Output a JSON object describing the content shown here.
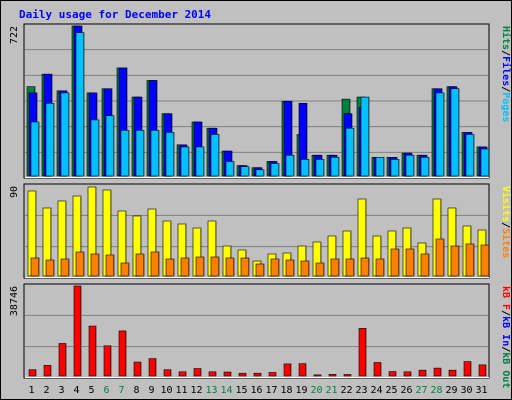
{
  "chart_data": {
    "type": "bar",
    "title": "Daily usage for December 2014",
    "colors": {
      "background": "#c0c0c0",
      "hits": "#008040",
      "files": "#0000ff",
      "pages": "#00c0ff",
      "visits": "#ffff00",
      "sites": "#ff8000",
      "kbytes": "#ff0000",
      "kb_in": "#0000ff",
      "kb_out": "#008040",
      "weekend_day_label": "#008040",
      "weekday_day_label": "#000000"
    },
    "days": [
      "1",
      "2",
      "3",
      "4",
      "5",
      "6",
      "7",
      "8",
      "9",
      "10",
      "11",
      "12",
      "13",
      "14",
      "15",
      "16",
      "17",
      "18",
      "19",
      "20",
      "21",
      "22",
      "23",
      "24",
      "25",
      "26",
      "27",
      "28",
      "29",
      "30",
      "31"
    ],
    "weekend_days": [
      "6",
      "7",
      "13",
      "14",
      "20",
      "21",
      "27",
      "28"
    ],
    "panels": [
      {
        "id": "top",
        "scale_label": "722",
        "ymax": 722,
        "right_labels": [
          {
            "text": "Hits",
            "color": "#008040"
          },
          {
            "text": "/",
            "color": "#000000"
          },
          {
            "text": "Files",
            "color": "#0000ff"
          },
          {
            "text": "/",
            "color": "#000000"
          },
          {
            "text": "Pages",
            "color": "#00c0ff"
          }
        ],
        "series": [
          {
            "name": "Hits",
            "color": "#008040",
            "values": [
              430,
              490,
              410,
              722,
              400,
              420,
              520,
              380,
              460,
              300,
              150,
              260,
              230,
              120,
              50,
              40,
              70,
              360,
              200,
              100,
              100,
              370,
              380,
              90,
              90,
              110,
              100,
              420,
              430,
              210,
              140
            ]
          },
          {
            "name": "Files",
            "color": "#0000ff",
            "values": [
              400,
              490,
              410,
              722,
              400,
              420,
              520,
              380,
              460,
              300,
              150,
              260,
              230,
              120,
              50,
              40,
              70,
              360,
              350,
              100,
              100,
              300,
              330,
              90,
              90,
              110,
              100,
              420,
              430,
              210,
              140
            ]
          },
          {
            "name": "Pages",
            "color": "#00c0ff",
            "values": [
              260,
              350,
              400,
              690,
              270,
              290,
              220,
              220,
              220,
              210,
              140,
              140,
              200,
              70,
              45,
              30,
              60,
              100,
              80,
              80,
              90,
              230,
              380,
              90,
              80,
              100,
              90,
              400,
              420,
              200,
              130
            ]
          }
        ]
      },
      {
        "id": "middle",
        "scale_label": "90",
        "ymax": 90,
        "right_labels": [
          {
            "text": "Visits",
            "color": "#ffff00"
          },
          {
            "text": "/",
            "color": "#000000"
          },
          {
            "text": "Sites",
            "color": "#ff8000"
          }
        ],
        "series": [
          {
            "name": "Visits",
            "color": "#ffff00",
            "values": [
              85,
              68,
              75,
              80,
              89,
              86,
              65,
              60,
              67,
              55,
              52,
              48,
              55,
              30,
              26,
              15,
              22,
              23,
              30,
              34,
              40,
              45,
              77,
              40,
              45,
              48,
              33,
              77,
              68,
              50,
              46
            ]
          },
          {
            "name": "Sites",
            "color": "#ff8000",
            "values": [
              18,
              16,
              17,
              24,
              22,
              21,
              13,
              22,
              24,
              17,
              18,
              19,
              19,
              18,
              18,
              12,
              17,
              16,
              15,
              13,
              17,
              17,
              18,
              17,
              27,
              27,
              22,
              37,
              30,
              32,
              31
            ]
          }
        ]
      },
      {
        "id": "bottom",
        "scale_label": "38746",
        "ymax": 38746,
        "right_labels": [
          {
            "text": "KBytes",
            "color": "#ff0000"
          },
          {
            "text": "/",
            "color": "#000000"
          },
          {
            "text": "KB In",
            "color": "#0000ff"
          },
          {
            "text": "/",
            "color": "#000000"
          },
          {
            "text": "KB Out",
            "color": "#008040"
          }
        ],
        "right_labels_display": [
          {
            "text": "kB F",
            "color": "#ff0000"
          },
          {
            "text": "/",
            "color": "#000000"
          },
          {
            "text": "kB In",
            "color": "#0000ff"
          },
          {
            "text": "/",
            "color": "#000000"
          },
          {
            "text": "kB Out",
            "color": "#008040"
          }
        ],
        "series": [
          {
            "name": "KBytes",
            "color": "#ff0000",
            "values": [
              2700,
              4600,
              14000,
              38746,
              21500,
              13000,
              19400,
              6000,
              7500,
              2700,
              1800,
              3200,
              1800,
              1700,
              1200,
              1200,
              1500,
              5200,
              5300,
              500,
              700,
              650,
              20500,
              5800,
              1900,
              1800,
              2500,
              3400,
              2500,
              6200,
              4800
            ]
          }
        ]
      }
    ]
  }
}
